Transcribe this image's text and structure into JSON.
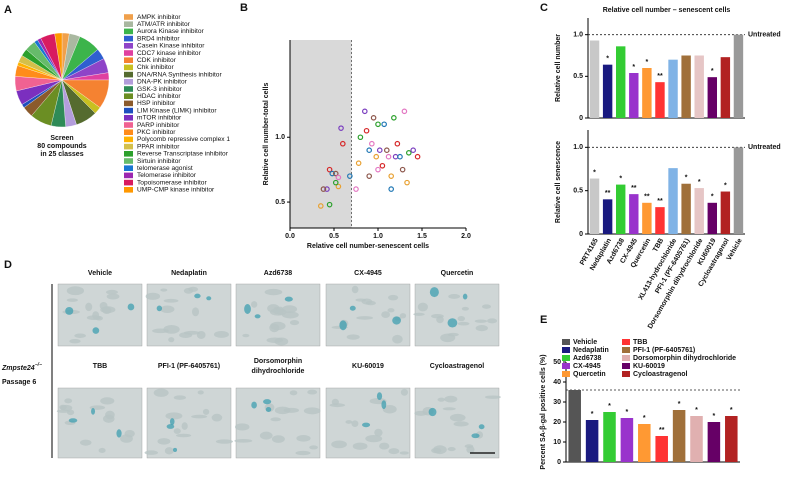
{
  "panel_labels": [
    "A",
    "B",
    "C",
    "D",
    "E"
  ],
  "chart_data": [
    {
      "type": "pie",
      "center_text": [
        "Screen",
        "80 compounds",
        "in 25 classes"
      ],
      "categories": [
        "AMPK inhibitor",
        "ATM/ATR inhibitor",
        "Aurora Kinase inhibitor",
        "BRD4 inhibitor",
        "Casein Kinase inhibitor",
        "CDC7 kinase inhibitor",
        "CDK inhibitor",
        "Chk inhibitor",
        "DNA/RNA Synthesis inhibitor",
        "DNA-PK inhibitor",
        "GSK-3 inhibitor",
        "HDAC inhibitor",
        "HSP inhibitor",
        "LIM Kinase (LIMK) inhibitor",
        "mTOR inhibitor",
        "PARP inhibitor",
        "PKC inhibitor",
        "Polycomb repressive complex 1",
        "PPAR inhibitor",
        "Reverse Transcriptase inhibitor",
        "Sirtuin inhibitor",
        "telomerase agonist",
        "Telomerase inhibitor",
        "Topoisomerase inhibitor",
        "UMP-CMP kinase inhibitor"
      ],
      "values": [
        2,
        3,
        6,
        3,
        4,
        2,
        8,
        2,
        6,
        3,
        4,
        6,
        3,
        1,
        4,
        4,
        3,
        1,
        2,
        2,
        3,
        1,
        1,
        4,
        2
      ],
      "colors": [
        "#f0a04b",
        "#a9b8a0",
        "#3cb44b",
        "#2f5fd0",
        "#8e44c8",
        "#e040a0",
        "#f58231",
        "#c8c020",
        "#556b2f",
        "#b39ddb",
        "#2e8b57",
        "#6b8e23",
        "#8b5a2b",
        "#1e4fbf",
        "#7b2fbf",
        "#f06292",
        "#ff8c1a",
        "#ffb300",
        "#d4c04a",
        "#2ca02c",
        "#66bb6a",
        "#1976d2",
        "#9c27b0",
        "#d81b60",
        "#ff9800"
      ]
    },
    {
      "type": "scatter",
      "xlabel": "Relative cell number-senescent cells",
      "ylabel": "Relative cell number-total cells",
      "xlim": [
        0,
        2
      ],
      "ylim": [
        0.3,
        1.75
      ],
      "xticks": [
        {
          "value": 0,
          "label": "0.0"
        },
        0.5,
        {
          "value": 1,
          "label": "1.0"
        },
        1.5,
        {
          "value": 2,
          "label": "2.0"
        }
      ],
      "yticks": [
        0.5,
        {
          "value": 1,
          "label": "1.0"
        }
      ],
      "threshold_x": 0.7,
      "x": [
        0.35,
        0.45,
        0.42,
        0.45,
        0.48,
        0.52,
        0.55,
        0.55,
        0.52,
        0.58,
        0.6,
        0.68,
        0.38,
        0.75,
        0.78,
        0.8,
        0.85,
        0.87,
        0.9,
        0.95,
        0.93,
        0.98,
        1.0,
        1.02,
        1.05,
        1.07,
        1.1,
        1.12,
        1.15,
        1.18,
        1.2,
        1.22,
        1.25,
        1.28,
        1.3,
        1.33,
        1.35,
        1.4,
        1.45,
        1.15,
        0.9,
        1.0
      ],
      "y": [
        0.47,
        0.48,
        0.6,
        0.75,
        0.72,
        0.72,
        0.69,
        0.62,
        0.65,
        1.07,
        0.95,
        0.7,
        0.6,
        0.6,
        0.8,
        1.0,
        1.2,
        1.05,
        0.9,
        1.15,
        0.95,
        0.85,
        1.1,
        0.9,
        0.78,
        1.1,
        0.9,
        0.85,
        0.7,
        1.15,
        0.85,
        0.95,
        0.85,
        0.75,
        1.2,
        0.65,
        0.88,
        0.9,
        0.85,
        0.6,
        0.7,
        0.75
      ],
      "colors": [
        "#e8a030",
        "#2ca02c",
        "#7b3fbf",
        "#d62728",
        "#1f77b4",
        "#8c564b",
        "#e377c2",
        "#e8a030",
        "#2ca02c",
        "#7b3fbf",
        "#d62728",
        "#1f77b4",
        "#8c564b",
        "#e377c2",
        "#e8a030",
        "#2ca02c",
        "#7b3fbf",
        "#d62728",
        "#1f77b4",
        "#8c564b",
        "#e377c2",
        "#e8a030",
        "#2ca02c",
        "#7b3fbf",
        "#d62728",
        "#1f77b4",
        "#8c564b",
        "#e377c2",
        "#e8a030",
        "#2ca02c",
        "#7b3fbf",
        "#d62728",
        "#1f77b4",
        "#8c564b",
        "#e377c2",
        "#e8a030",
        "#2ca02c",
        "#7b3fbf",
        "#d62728",
        "#1f77b4",
        "#8c564b",
        "#e377c2"
      ]
    },
    {
      "type": "bar",
      "title": "Relative cell number – senescent cells",
      "ylabel": "Relative cell number",
      "ylim": [
        0,
        1.2
      ],
      "yticks": [
        0,
        0.5,
        {
          "value": 1,
          "label": "1.0"
        }
      ],
      "reference_line": 1,
      "reference_label": "Untreated",
      "values": [
        0.93,
        0.64,
        0.86,
        0.54,
        0.6,
        0.43,
        0.7,
        0.75,
        0.75,
        0.49,
        0.73,
        1
      ],
      "significance": [
        null,
        "*",
        null,
        "*",
        "*",
        "**",
        null,
        null,
        null,
        "*",
        null,
        null
      ],
      "colors": [
        "#c8c8c8",
        "#1a1a80",
        "#33cc33",
        "#9933cc",
        "#ff9933",
        "#ff3333",
        "#80b3e6",
        "#a0703a",
        "#e6c6c6",
        "#660066",
        "#b22222",
        "#999999"
      ]
    },
    {
      "type": "bar",
      "ylabel": "Relative cell senescence",
      "ylim": [
        0,
        1.2
      ],
      "yticks": [
        0,
        0.5,
        {
          "value": 1,
          "label": "1.0"
        }
      ],
      "reference_line": 1,
      "reference_label": "Untreated",
      "categories": [
        "PRT4165",
        "Nedaplatin",
        "Azd6738",
        "CX-4945",
        "Quercetin",
        "TBB",
        "XL413-hydrochloride",
        "PFI-1 (PF-6405761)",
        "Dorsomorphin dihydrochloride",
        "KU60019",
        "Cycloastragenol",
        "Vehicle"
      ],
      "values": [
        0.64,
        0.4,
        0.57,
        0.46,
        0.36,
        0.31,
        0.76,
        0.58,
        0.53,
        0.36,
        0.49,
        1
      ],
      "significance": [
        "*",
        "**",
        "*",
        "**",
        "**",
        "**",
        null,
        "*",
        "*",
        "*",
        "*",
        null
      ],
      "colors": [
        "#c8c8c8",
        "#1a1a80",
        "#33cc33",
        "#9933cc",
        "#ff9933",
        "#ff3333",
        "#80b3e6",
        "#a0703a",
        "#e6c6c6",
        "#660066",
        "#b22222",
        "#999999"
      ]
    },
    {
      "type": "bar",
      "ylabel": "Percent SA-β-gal positive cells (%)",
      "ylim": [
        0,
        50
      ],
      "yticks": [
        0,
        10,
        20,
        30,
        40,
        50
      ],
      "reference_line": 36,
      "legend": true,
      "categories": [
        "Vehicle",
        "Nedaplatin",
        "Azd6738",
        "CX-4945",
        "Quercetin",
        "TBB",
        "PFI-1 (PF-6405761)",
        "Dorsomorphin dihydrochloride",
        "KU-60019",
        "Cycloastragenol"
      ],
      "values": [
        36,
        21,
        25,
        22,
        19,
        13,
        26,
        23,
        20,
        23
      ],
      "significance": [
        null,
        "*",
        "*",
        "*",
        "*",
        "**",
        "*",
        "*",
        "*",
        "*"
      ],
      "colors": [
        "#555555",
        "#1a1a80",
        "#33cc33",
        "#9933cc",
        "#ff9933",
        "#ff3333",
        "#a0703a",
        "#e0b0b0",
        "#660066",
        "#b22222"
      ]
    }
  ],
  "panel_d": {
    "genotype": "Zmpste24",
    "genotype_sup": "−/−",
    "passage": "Passage 6",
    "images": [
      [
        "Vehicle"
      ],
      [
        "Nedaplatin"
      ],
      [
        "Azd6738"
      ],
      [
        "CX-4945"
      ],
      [
        "Quercetin"
      ],
      [
        "TBB"
      ],
      [
        "PFI-1 (PF-6405761)"
      ],
      [
        "Dorsomorphin",
        "dihydrochloride"
      ],
      [
        "KU-60019"
      ],
      [
        "Cycloastragenol"
      ]
    ]
  }
}
